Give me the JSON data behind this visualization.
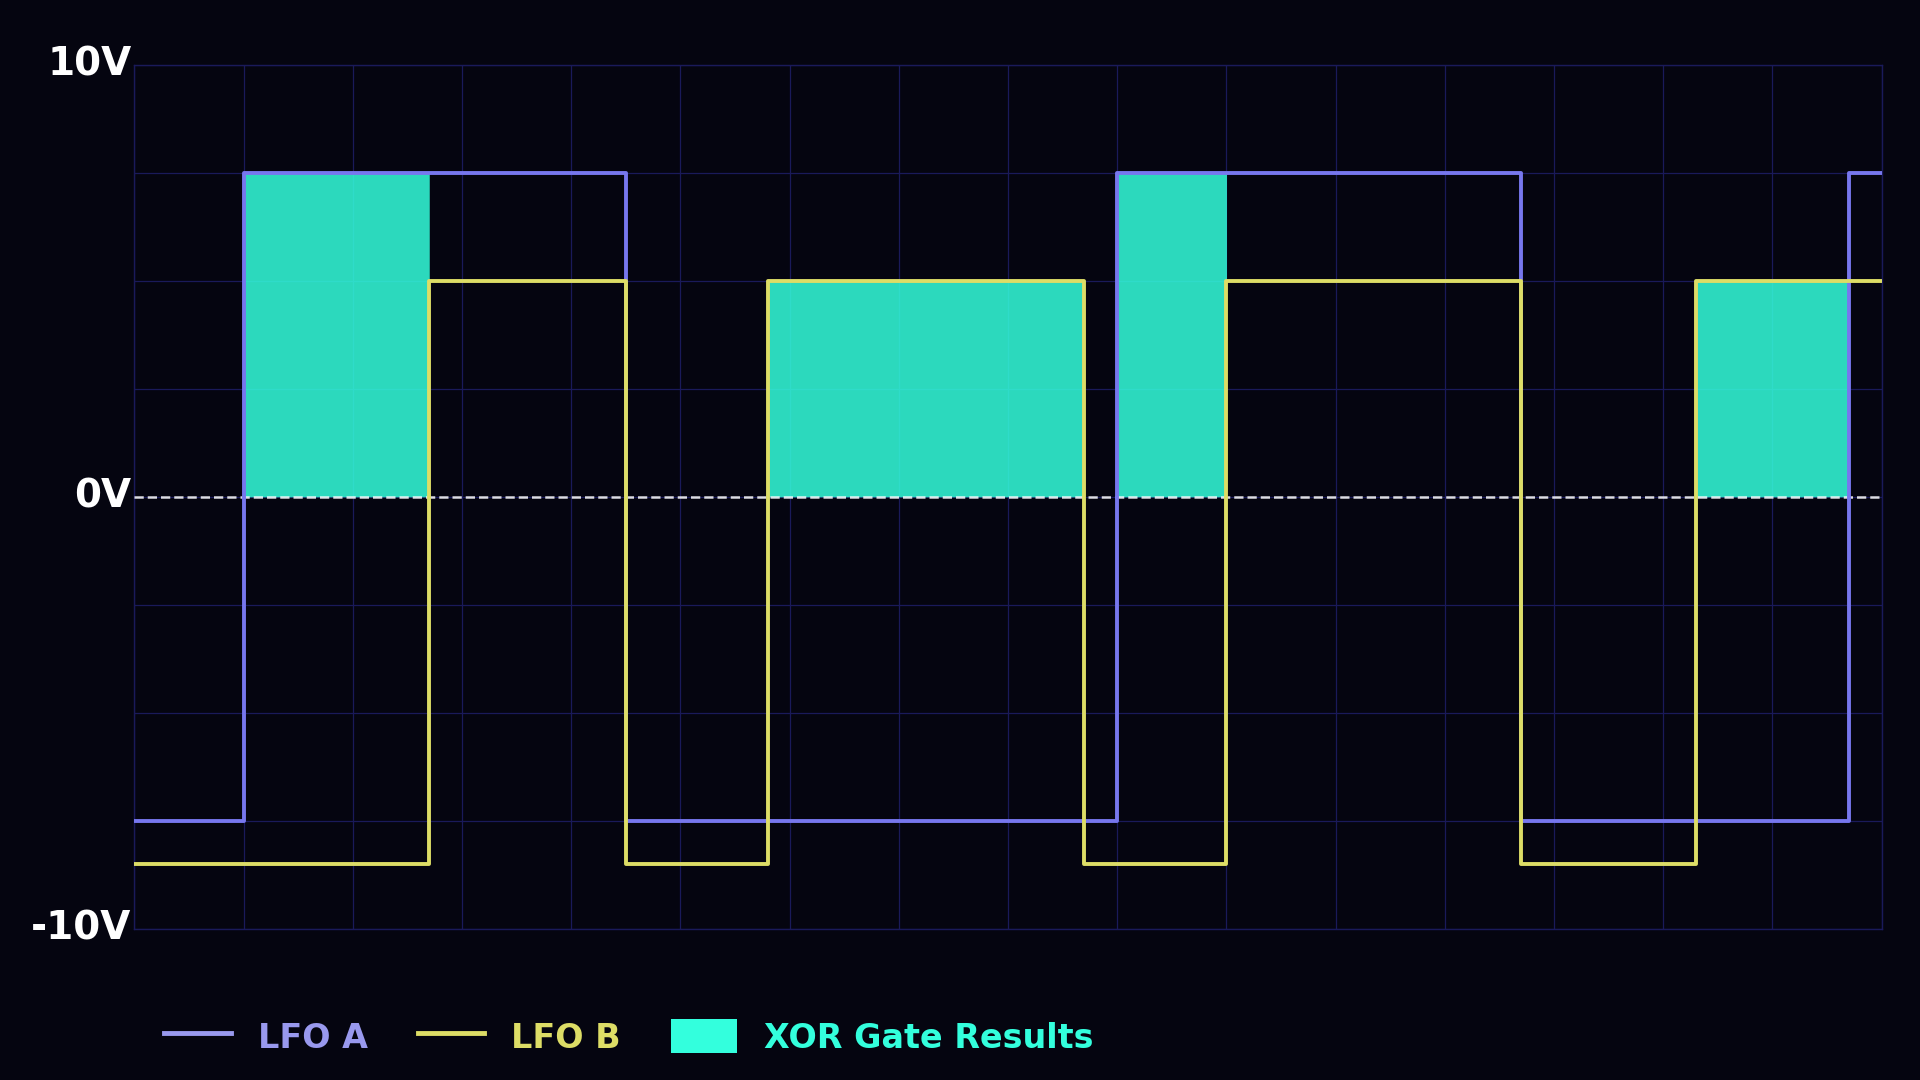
{
  "background_color": "#050510",
  "plot_bg_color": "#050510",
  "grid_color": "#1a1a5a",
  "ylim": [
    -10,
    10
  ],
  "xlim": [
    0,
    16
  ],
  "lfo_a_color": "#7777ee",
  "lfo_b_color": "#dddd66",
  "xor_color": "#33ffdd",
  "xor_alpha": 0.85,
  "lfo_a_linewidth": 2.8,
  "lfo_b_linewidth": 2.8,
  "lfo_a_high": 7.5,
  "lfo_a_low": -7.5,
  "lfo_b_high": 5.0,
  "lfo_b_low": -8.5,
  "legend_labels": [
    "LFO A",
    "LFO B",
    "XOR Gate Results"
  ],
  "legend_colors": [
    "#9999ee",
    "#dddd66",
    "#33ffdd"
  ],
  "legend_fontsize": 24,
  "axis_label_fontsize": 28,
  "lfo_a_transitions": [
    0.0,
    1.0,
    4.5,
    9.0,
    12.7,
    15.7,
    16.0
  ],
  "lfo_a_states": [
    -1,
    1,
    -1,
    1,
    -1,
    1,
    1
  ],
  "lfo_b_transitions": [
    0.0,
    2.7,
    4.5,
    5.8,
    8.7,
    10.0,
    12.7,
    14.3,
    16.0
  ],
  "lfo_b_states": [
    -1,
    1,
    -1,
    1,
    -1,
    1,
    -1,
    1,
    1
  ]
}
